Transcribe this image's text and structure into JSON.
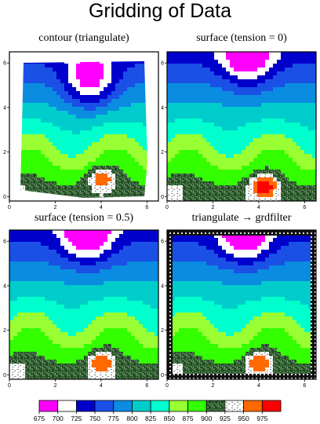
{
  "title": "Gridding of Data",
  "chart_data": [
    {
      "type": "heatmap",
      "title": "contour (triangulate)",
      "xlim": [
        0,
        6.5
      ],
      "ylim": [
        -0.2,
        6.5
      ],
      "xticks": [
        "0",
        "2",
        "4",
        "6"
      ],
      "yticks": [
        "0",
        "2",
        "4",
        "6"
      ],
      "features": {
        "valley": [
          3.5,
          5.2
        ],
        "peak": [
          4.0,
          0.8
        ],
        "peak_value": 950
      },
      "clip_to_hull": true
    },
    {
      "type": "heatmap",
      "title": "surface (tension = 0)",
      "xlim": [
        0,
        6.5
      ],
      "ylim": [
        -0.2,
        6.5
      ],
      "xticks": [
        "0",
        "2",
        "4",
        "6"
      ],
      "yticks": [
        "0",
        "2",
        "4",
        "6"
      ],
      "features": {
        "valley": [
          3.5,
          6.3
        ],
        "peak": [
          4.2,
          0.5
        ],
        "peak_value": 975
      }
    },
    {
      "type": "heatmap",
      "title": "surface (tension = 0.5)",
      "xlim": [
        0,
        6.5
      ],
      "ylim": [
        -0.2,
        6.5
      ],
      "xticks": [
        "0",
        "2",
        "4",
        "6"
      ],
      "yticks": [
        "0",
        "2",
        "4",
        "6"
      ],
      "features": {
        "valley": [
          3.4,
          6.3
        ],
        "peak": [
          4.0,
          0.6
        ],
        "peak_value": 950
      }
    },
    {
      "type": "heatmap",
      "title": "triangulate → grdfilter",
      "xlim": [
        0,
        6.5
      ],
      "ylim": [
        -0.2,
        6.5
      ],
      "xticks": [
        "0",
        "2",
        "4",
        "6"
      ],
      "yticks": [
        "0",
        "2",
        "4",
        "6"
      ],
      "features": {
        "valley": [
          3.4,
          6.3
        ],
        "peak": [
          4.0,
          0.6
        ],
        "peak_value": 950
      },
      "nan_border": true
    }
  ],
  "colorbar": {
    "levels": [
      675,
      700,
      725,
      750,
      775,
      800,
      825,
      850,
      875,
      900,
      925,
      950,
      975
    ],
    "labels": [
      "675",
      "700",
      "725",
      "750",
      "775",
      "800",
      "825",
      "850",
      "875",
      "900",
      "925",
      "950",
      "975"
    ],
    "colors": [
      "#ff00ff",
      "#ffffff",
      "#0000cc",
      "#1a50e6",
      "#0a8ce0",
      "#00cccc",
      "#00ffcc",
      "#99ff33",
      "#33ff00",
      "pattern-dark",
      "pattern-white",
      "#ff6a00",
      "#ff0000"
    ]
  }
}
